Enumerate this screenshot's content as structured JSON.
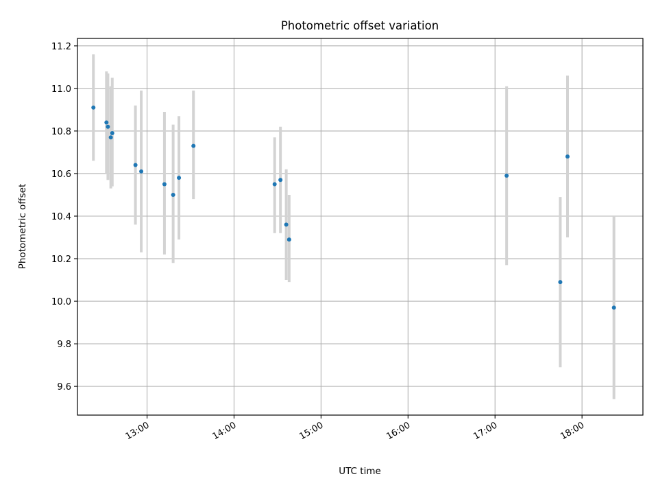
{
  "chart_data": {
    "type": "scatter",
    "title": "Photometric offset variation",
    "xlabel": "UTC time",
    "ylabel": "Photometric offset",
    "xlim": [
      "12:12",
      "18:42"
    ],
    "ylim": [
      9.465,
      11.235
    ],
    "x_ticks": [
      "13:00",
      "14:00",
      "15:00",
      "16:00",
      "17:00",
      "18:00"
    ],
    "y_ticks": [
      "9.6",
      "9.8",
      "10.0",
      "10.2",
      "10.4",
      "10.6",
      "10.8",
      "11.0",
      "11.2"
    ],
    "grid": true,
    "colors": {
      "points": "#1f77b4",
      "errorbars": "#d3d3d3",
      "grid": "#b0b0b0"
    },
    "points": [
      {
        "x": "12:23",
        "y": 10.91,
        "y_low": 10.66,
        "y_high": 11.16
      },
      {
        "x": "12:32",
        "y": 10.84,
        "y_low": 10.6,
        "y_high": 11.08
      },
      {
        "x": "12:33",
        "y": 10.82,
        "y_low": 10.57,
        "y_high": 11.07
      },
      {
        "x": "12:35",
        "y": 10.77,
        "y_low": 10.53,
        "y_high": 11.01
      },
      {
        "x": "12:36",
        "y": 10.79,
        "y_low": 10.54,
        "y_high": 11.05
      },
      {
        "x": "12:52",
        "y": 10.64,
        "y_low": 10.36,
        "y_high": 10.92
      },
      {
        "x": "12:56",
        "y": 10.61,
        "y_low": 10.23,
        "y_high": 10.99
      },
      {
        "x": "13:12",
        "y": 10.55,
        "y_low": 10.22,
        "y_high": 10.89
      },
      {
        "x": "13:18",
        "y": 10.5,
        "y_low": 10.18,
        "y_high": 10.83
      },
      {
        "x": "13:22",
        "y": 10.58,
        "y_low": 10.29,
        "y_high": 10.87
      },
      {
        "x": "13:32",
        "y": 10.73,
        "y_low": 10.48,
        "y_high": 10.99
      },
      {
        "x": "14:28",
        "y": 10.55,
        "y_low": 10.32,
        "y_high": 10.77
      },
      {
        "x": "14:32",
        "y": 10.57,
        "y_low": 10.32,
        "y_high": 10.82
      },
      {
        "x": "14:36",
        "y": 10.36,
        "y_low": 10.1,
        "y_high": 10.62
      },
      {
        "x": "14:38",
        "y": 10.29,
        "y_low": 10.09,
        "y_high": 10.5
      },
      {
        "x": "17:08",
        "y": 10.59,
        "y_low": 10.17,
        "y_high": 11.01
      },
      {
        "x": "17:45",
        "y": 10.09,
        "y_low": 9.69,
        "y_high": 10.49
      },
      {
        "x": "17:50",
        "y": 10.68,
        "y_low": 10.3,
        "y_high": 11.06
      },
      {
        "x": "18:22",
        "y": 9.97,
        "y_low": 9.54,
        "y_high": 10.4
      }
    ]
  }
}
